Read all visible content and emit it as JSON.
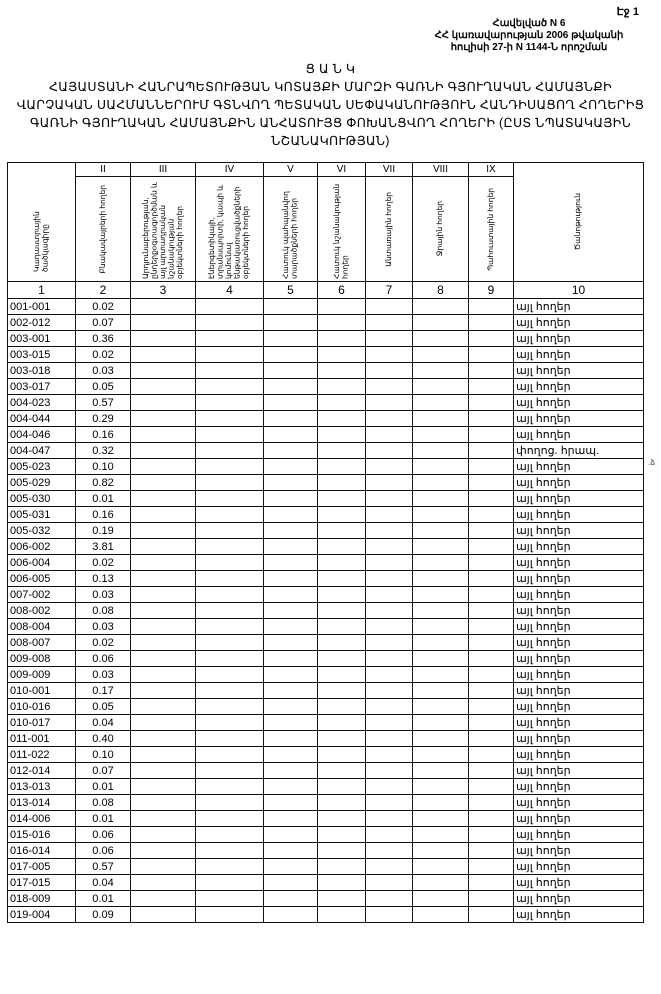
{
  "page_label": "Էջ 1",
  "annex": [
    "Հավելված N 6",
    "ՀՀ կառավարության 2006 թվականի",
    "հուլիսի 27-ի N 1144-Ն որոշման"
  ],
  "title": [
    "Ց Ա Ն Կ",
    "ՀԱՅԱՍՏԱՆԻ ՀԱՆՐԱՊԵՏՈՒԹՅԱՆ ԿՈՏԱՅՔԻ ՄԱՐԶԻ ԳԱՌՆԻ ԳՅՈՒՂԱԿԱՆ ՀԱՄԱՅՆՔԻ",
    "ՎԱՐՉԱԿԱՆ ՍԱՀՄԱՆՆԵՐՈՒՄ ԳՏՆՎՈՂ ՊԵՏԱԿԱՆ ՍԵՓԱԿԱՆՈՒԹՅՈՒՆ ՀԱՆԴԻՍԱՑՈՂ ՀՈՂԵՐԻՑ",
    "ԳԱՌՆԻ ԳՅՈՒՂԱԿԱՆ ՀԱՄԱՅՆՔԻՆ ԱՆՀԱՏՈՒՅՑ ՓՈԽԱՆՑՎՈՂ ՀՈՂԵՐԻ (ԸՍՏ ՆՊԱՏԱԿԱՅԻՆ",
    "ՆՇԱՆԱԿՈՒԹՅԱՆ)"
  ],
  "table": {
    "roman": [
      "",
      "II",
      "III",
      "IV",
      "V",
      "VI",
      "VII",
      "VIII",
      "IX",
      ""
    ],
    "headers": [
      "Կադաստրային ծածկագիրը",
      "Բնակավայրերի հողեր",
      "Արդյունաբերության, ընդերքօգտագործման և այլ արտադրական նշանակության օբյեկտների հողեր",
      "Էներգետիկայի, տրանսպորտի, կապի և կոմունալ ենթակառուցվածքների օբյեկտների հողեր",
      "Հատուկ պահպանվող տարածքների հողեր",
      "Հատուկ նշանակության հողեր",
      "Անտառային հողեր",
      "Ջրային հողեր",
      "Պահուստային հողեր",
      "Ծանոթություն"
    ],
    "numbers": [
      "1",
      "2",
      "3",
      "4",
      "5",
      "6",
      "7",
      "8",
      "9",
      "10"
    ],
    "rows": [
      [
        "001-001",
        "0.02",
        "այլ հողեր"
      ],
      [
        "002-012",
        "0.07",
        "այլ հողեր"
      ],
      [
        "003-001",
        "0.36",
        "այլ հողեր"
      ],
      [
        "003-015",
        "0.02",
        "այլ հողեր"
      ],
      [
        "003-018",
        "0.03",
        "այլ հողեր"
      ],
      [
        "003-017",
        "0.05",
        "այլ հողեր"
      ],
      [
        "004-023",
        "0.57",
        "այլ հողեր"
      ],
      [
        "004-044",
        "0.29",
        "այլ հողեր"
      ],
      [
        "004-046",
        "0.16",
        "այլ հողեր"
      ],
      [
        "004-047",
        "0.32",
        "փողոց. հրապ."
      ],
      [
        "005-023",
        "0.10",
        "այլ հողեր"
      ],
      [
        "005-029",
        "0.82",
        "այլ հողեր"
      ],
      [
        "005-030",
        "0.01",
        "այլ հողեր"
      ],
      [
        "005-031",
        "0.16",
        "այլ հողեր"
      ],
      [
        "005-032",
        "0.19",
        "այլ հողեր"
      ],
      [
        "006-002",
        "3.81",
        "այլ հողեր"
      ],
      [
        "006-004",
        "0.02",
        "այլ հողեր"
      ],
      [
        "006-005",
        "0.13",
        "այլ հողեր"
      ],
      [
        "007-002",
        "0.03",
        "այլ հողեր"
      ],
      [
        "008-002",
        "0.08",
        "այլ հողեր"
      ],
      [
        "008-004",
        "0.03",
        "այլ հողեր"
      ],
      [
        "008-007",
        "0.02",
        "այլ հողեր"
      ],
      [
        "009-008",
        "0.06",
        "այլ հողեր"
      ],
      [
        "009-009",
        "0.03",
        "այլ հողեր"
      ],
      [
        "010-001",
        "0.17",
        "այլ հողեր"
      ],
      [
        "010-016",
        "0.05",
        "այլ հողեր"
      ],
      [
        "010-017",
        "0.04",
        "այլ հողեր"
      ],
      [
        "011-001",
        "0.40",
        "այլ հողեր"
      ],
      [
        "011-022",
        "0.10",
        "այլ հողեր"
      ],
      [
        "012-014",
        "0.07",
        "այլ հողեր"
      ],
      [
        "013-013",
        "0.01",
        "այլ հողեր"
      ],
      [
        "013-014",
        "0.08",
        "այլ հողեր"
      ],
      [
        "014-006",
        "0.01",
        "այլ հողեր"
      ],
      [
        "015-016",
        "0.06",
        "այլ հողեր"
      ],
      [
        "016-014",
        "0.06",
        "այլ հողեր"
      ],
      [
        "017-005",
        "0.57",
        "այլ հողեր"
      ],
      [
        "017-015",
        "0.04",
        "այլ հողեր"
      ],
      [
        "018-009",
        "0.01",
        "այլ հողեր"
      ],
      [
        "019-004",
        "0.09",
        "այլ հողեր"
      ]
    ]
  }
}
